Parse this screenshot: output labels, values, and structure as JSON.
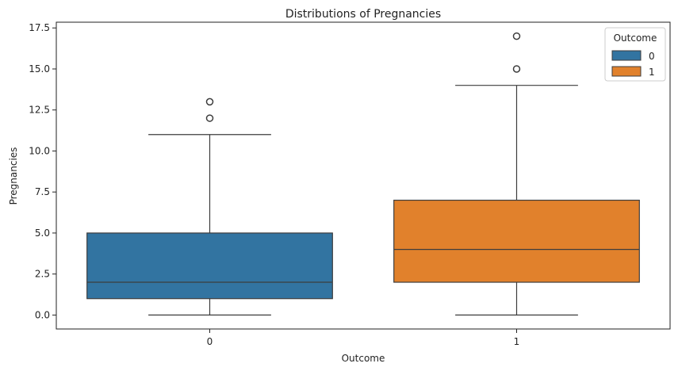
{
  "chart_data": {
    "type": "box",
    "title": "Distributions of Pregnancies",
    "xlabel": "Outcome",
    "ylabel": "Pregnancies",
    "ylim": [
      -0.85,
      17.85
    ],
    "yticks": [
      "0.0",
      "2.5",
      "5.0",
      "7.5",
      "10.0",
      "12.5",
      "15.0",
      "17.5"
    ],
    "categories": [
      "0",
      "1"
    ],
    "grid": false,
    "legend": {
      "title": "Outcome",
      "placement": "top-right",
      "entries": [
        "0",
        "1"
      ]
    },
    "series": [
      {
        "name": "0",
        "color": "#3274a1",
        "q1": 1,
        "median": 2,
        "q3": 5,
        "whisker_low": 0,
        "whisker_high": 11,
        "outliers": [
          12,
          13
        ]
      },
      {
        "name": "1",
        "color": "#e1812c",
        "q1": 2,
        "median": 4,
        "q3": 7,
        "whisker_low": 0,
        "whisker_high": 14,
        "outliers": [
          15,
          17
        ]
      }
    ]
  }
}
